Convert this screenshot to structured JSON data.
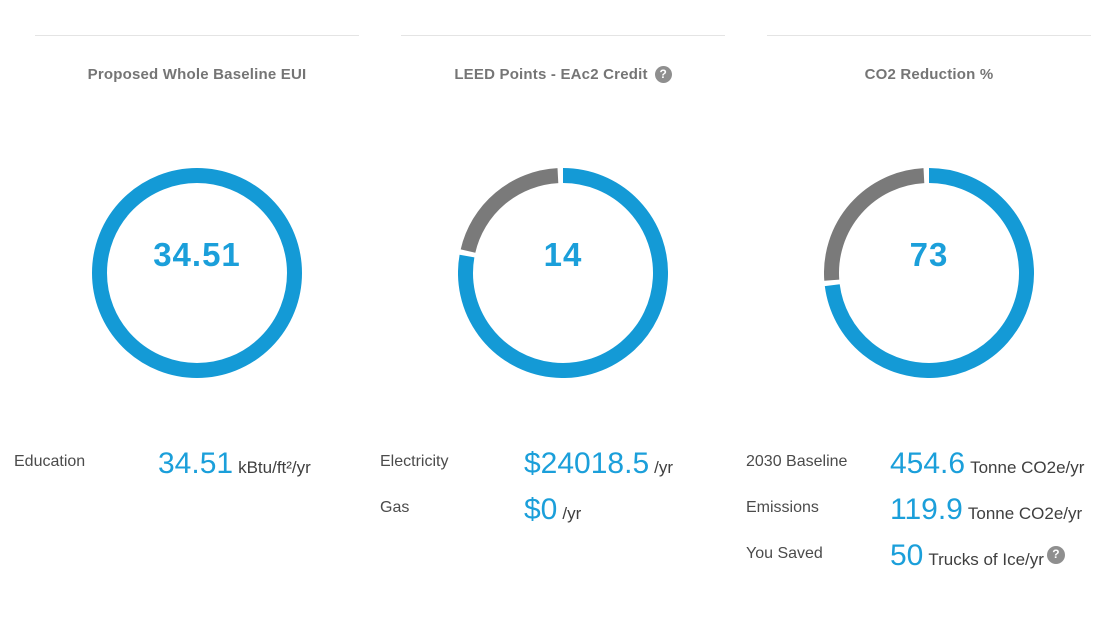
{
  "colors": {
    "arc_active": "#149ad6",
    "arc_inactive": "#7a7a7a",
    "value_blue": "#1b9fda",
    "title_gray": "#757575",
    "label_gray": "#4b4b4b",
    "unit_gray": "#3f3f3f",
    "divider": "#e4e4e4",
    "help_icon_bg": "#8f8f8f"
  },
  "help_icon_glyph": "?",
  "chart_data": [
    {
      "type": "donut",
      "title": "Proposed Whole Baseline EUI",
      "center_label": "34.51",
      "center_value": 34.51,
      "percent_filled": 100,
      "sweep_deg": 360,
      "segments": [
        {
          "name": "filled",
          "percent": 100,
          "color": "#149ad6"
        }
      ],
      "details": [
        {
          "label": "Education",
          "value_text": "34.51",
          "value": 34.51,
          "unit": "kBtu/ft²/yr"
        }
      ]
    },
    {
      "type": "donut",
      "title": "LEED Points - EAc2 Credit",
      "has_help_icon": true,
      "center_label": "14",
      "center_value": 14,
      "percent_filled": 77.8,
      "sweep_deg": 280,
      "segments": [
        {
          "name": "earned",
          "percent": 77.8,
          "color": "#149ad6"
        },
        {
          "name": "remaining",
          "percent": 22.2,
          "color": "#7a7a7a"
        }
      ],
      "details": [
        {
          "label": "Electricity",
          "value_text": "$24018.5",
          "value": 24018.5,
          "unit": "/yr"
        },
        {
          "label": "Gas",
          "value_text": "$0",
          "value": 0,
          "unit": "/yr"
        }
      ]
    },
    {
      "type": "donut",
      "title": "CO2 Reduction %",
      "center_label": "73",
      "center_value": 73,
      "percent_filled": 73,
      "sweep_deg": 262.8,
      "segments": [
        {
          "name": "reduced",
          "percent": 73,
          "color": "#149ad6"
        },
        {
          "name": "remaining",
          "percent": 27,
          "color": "#7a7a7a"
        }
      ],
      "details": [
        {
          "label": "2030 Baseline",
          "value_text": "454.6",
          "value": 454.6,
          "unit": "Tonne CO2e/yr"
        },
        {
          "label": "Emissions",
          "value_text": "119.9",
          "value": 119.9,
          "unit": "Tonne CO2e/yr"
        },
        {
          "label": "You Saved",
          "value_text": "50",
          "value": 50,
          "unit": "Trucks of Ice/yr",
          "has_help_icon": true
        }
      ]
    }
  ]
}
